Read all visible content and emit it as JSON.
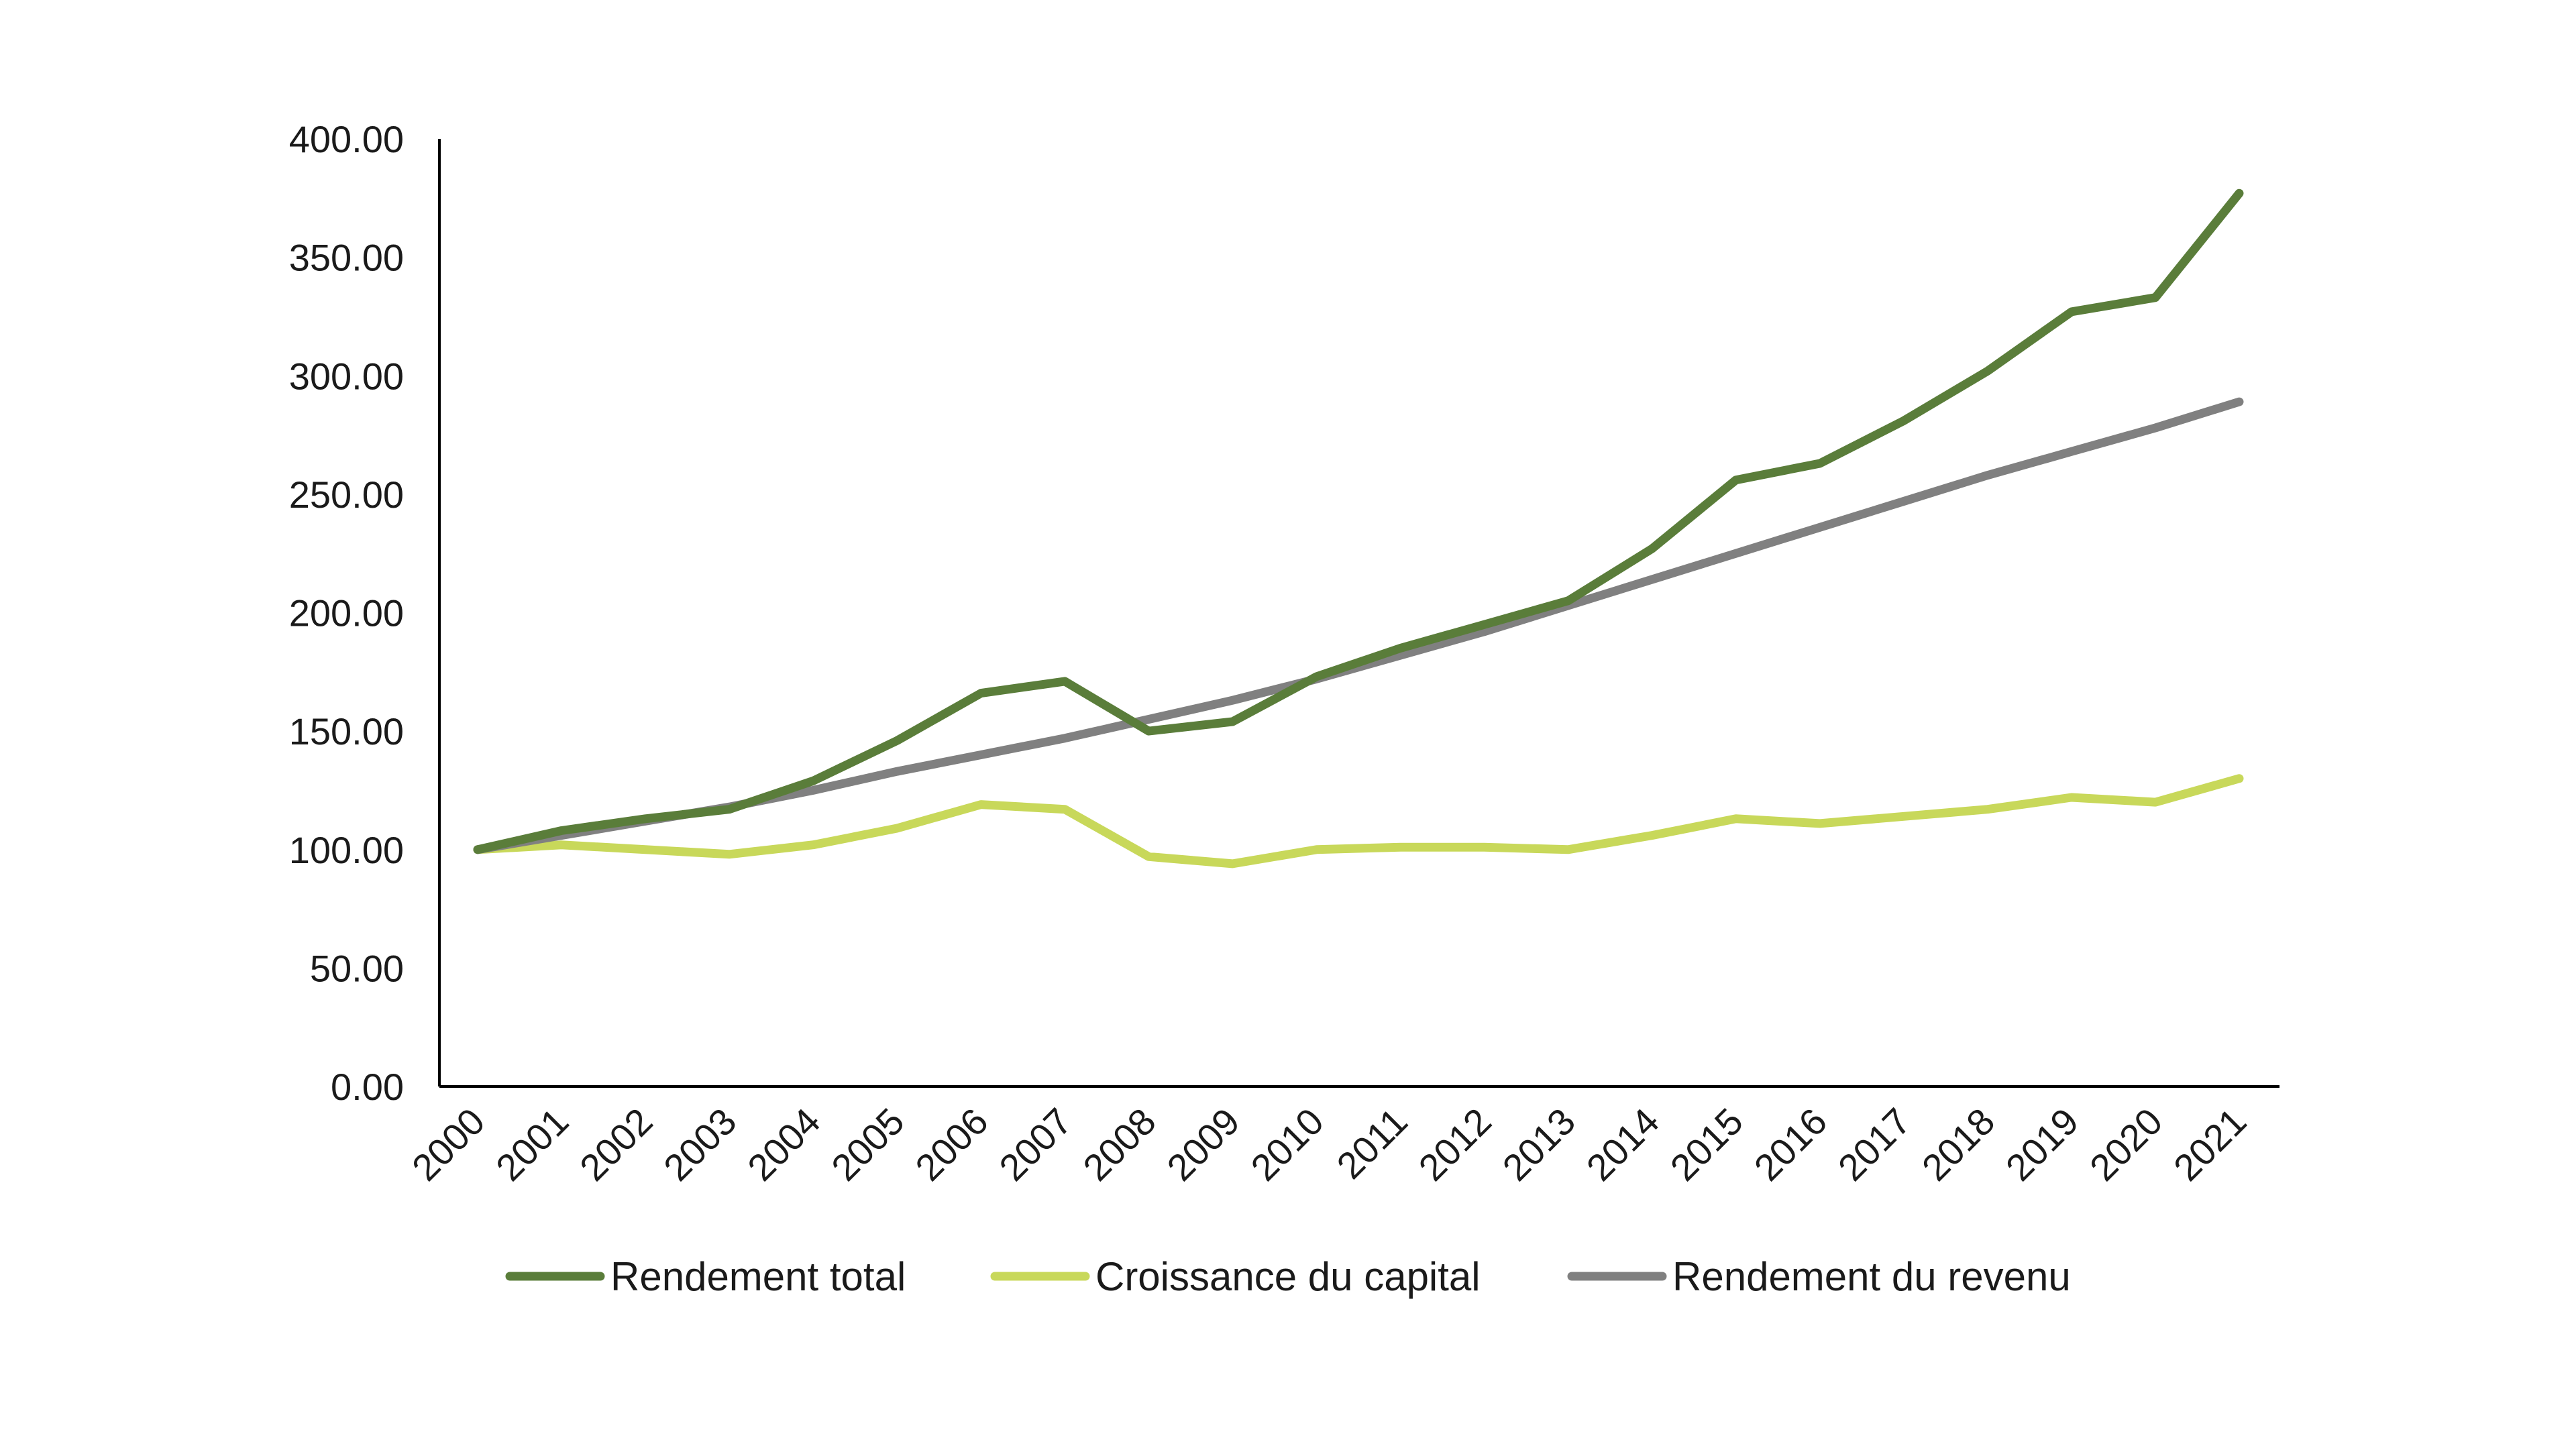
{
  "chart_data": {
    "type": "line",
    "title": "",
    "xlabel": "",
    "ylabel": "",
    "ylim": [
      0,
      400
    ],
    "y_ticks": [
      "0.00",
      "50.00",
      "100.00",
      "150.00",
      "200.00",
      "250.00",
      "300.00",
      "350.00",
      "400.00"
    ],
    "categories": [
      "2000",
      "2001",
      "2002",
      "2003",
      "2004",
      "2005",
      "2006",
      "2007",
      "2008",
      "2009",
      "2010",
      "2011",
      "2012",
      "2013",
      "2014",
      "2015",
      "2016",
      "2017",
      "2018",
      "2019",
      "2020",
      "2021"
    ],
    "grid": false,
    "legend_position": "bottom",
    "series": [
      {
        "name": "Rendement total",
        "color": "#5a7d3a",
        "values": [
          100,
          108,
          113,
          117,
          129,
          146,
          166,
          171,
          150,
          154,
          173,
          185,
          195,
          205,
          227,
          256,
          263,
          281,
          302,
          327,
          333,
          377
        ]
      },
      {
        "name": "Croissance du capital",
        "color": "#c8d85a",
        "values": [
          100,
          102,
          100,
          98,
          102,
          109,
          119,
          117,
          97,
          94,
          100,
          101,
          101,
          100,
          106,
          113,
          111,
          114,
          117,
          122,
          120,
          130
        ]
      },
      {
        "name": "Rendement du revenu",
        "color": "#808080",
        "values": [
          100,
          106,
          112,
          118,
          125,
          133,
          140,
          147,
          155,
          163,
          172,
          182,
          192,
          203,
          214,
          225,
          236,
          247,
          258,
          268,
          278,
          289
        ]
      }
    ]
  }
}
